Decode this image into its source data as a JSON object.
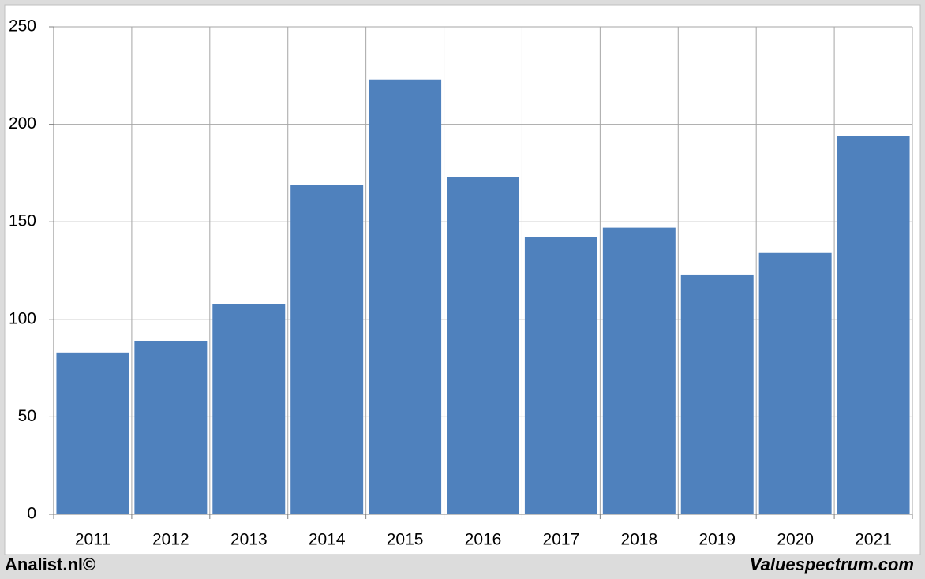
{
  "chart_data": {
    "type": "bar",
    "categories": [
      "2011",
      "2012",
      "2013",
      "2014",
      "2015",
      "2016",
      "2017",
      "2018",
      "2019",
      "2020",
      "2021"
    ],
    "values": [
      83,
      89,
      108,
      169,
      223,
      173,
      142,
      147,
      123,
      134,
      194
    ],
    "color": "#4f81bd",
    "ylim": [
      0,
      250
    ],
    "yticks": [
      0,
      50,
      100,
      150,
      200,
      250
    ],
    "grid": true
  },
  "footer": {
    "left": "Analist.nl©",
    "right": "Valuespectrum.com"
  }
}
